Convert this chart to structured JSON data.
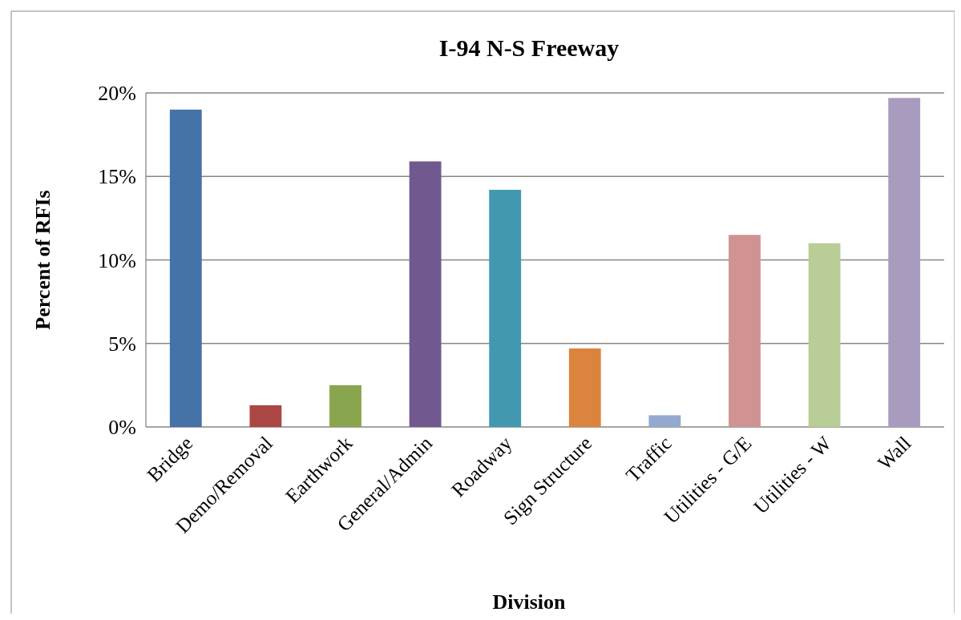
{
  "chart_data": {
    "type": "bar",
    "title": "I-94 N-S Freeway",
    "xlabel": "Division",
    "ylabel": "Percent of RFIs",
    "categories": [
      "Bridge",
      "Demo/Removal",
      "Earthwork",
      "General/Admin",
      "Roadway",
      "Sign Structure",
      "Traffic",
      "Utilities - G/E",
      "Utilities - W",
      "Wall"
    ],
    "values": [
      19.0,
      1.3,
      2.5,
      15.9,
      14.2,
      4.7,
      0.7,
      11.5,
      11.0,
      19.7
    ],
    "colors": [
      "#4572a7",
      "#aa4643",
      "#89a54e",
      "#71588f",
      "#4198af",
      "#db843d",
      "#93a9cf",
      "#d19392",
      "#b9cd96",
      "#a99bbd"
    ],
    "ylim": [
      0,
      20
    ],
    "yticks": [
      {
        "value": 0,
        "label": "0%"
      },
      {
        "value": 5,
        "label": "5%"
      },
      {
        "value": 10,
        "label": "10%"
      },
      {
        "value": 15,
        "label": "15%"
      },
      {
        "value": 20,
        "label": "20%"
      }
    ],
    "grid": "y"
  }
}
